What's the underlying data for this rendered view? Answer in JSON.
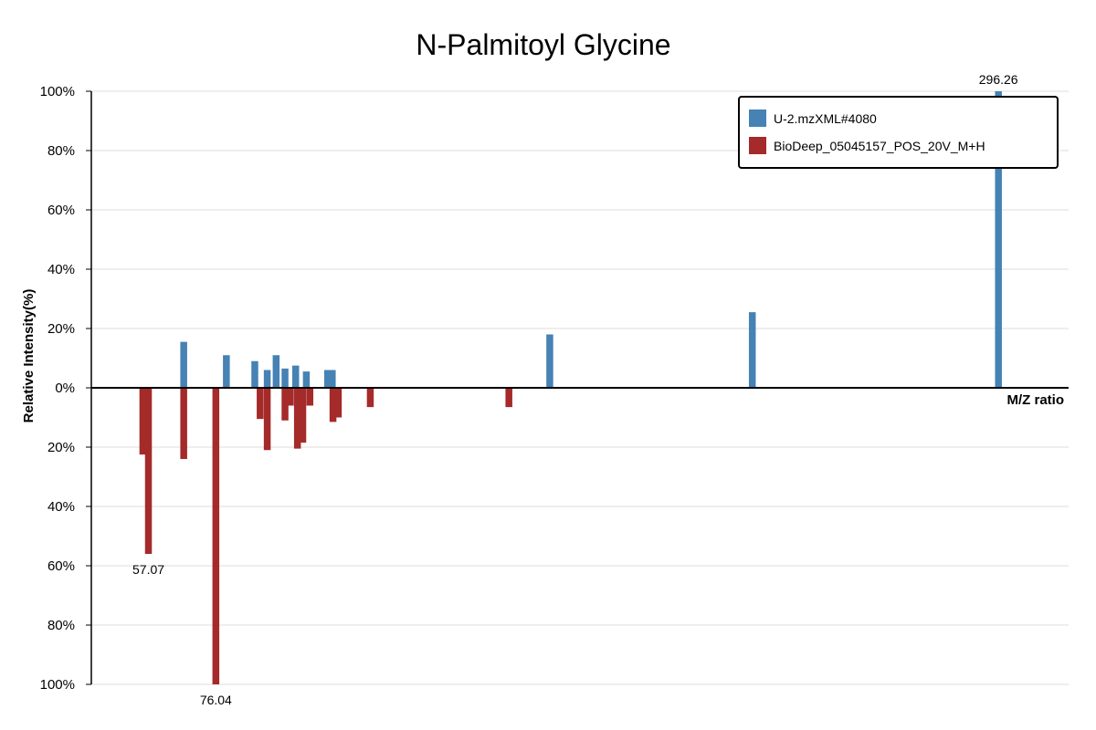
{
  "chart_data": {
    "type": "bar",
    "title": "N-Palmitoyl Glycine",
    "xlabel": "M/Z ratio",
    "ylabel": "Relative Intensity(%)",
    "xlim": [
      41,
      316
    ],
    "ylim": [
      -100,
      100
    ],
    "yticks": [
      100,
      80,
      60,
      40,
      20,
      0,
      -20,
      -40,
      -60,
      -80,
      -100
    ],
    "ytick_labels": [
      "100%",
      "80%",
      "60%",
      "40%",
      "20%",
      "0%",
      "20%",
      "40%",
      "60%",
      "80%",
      "100%"
    ],
    "grid": true,
    "legend_position": "top-right",
    "series": [
      {
        "name": "U-2.mzXML#4080",
        "color": "#4682b4",
        "direction": "up",
        "points": [
          {
            "mz": 67.0,
            "intensity": 15.5
          },
          {
            "mz": 79.0,
            "intensity": 11.0
          },
          {
            "mz": 87.0,
            "intensity": 9.0
          },
          {
            "mz": 90.5,
            "intensity": 6.0
          },
          {
            "mz": 93.0,
            "intensity": 11.0
          },
          {
            "mz": 95.5,
            "intensity": 6.5
          },
          {
            "mz": 98.5,
            "intensity": 7.5
          },
          {
            "mz": 101.5,
            "intensity": 5.5
          },
          {
            "mz": 107.5,
            "intensity": 6.0
          },
          {
            "mz": 108.8,
            "intensity": 6.0
          },
          {
            "mz": 170.0,
            "intensity": 18.0
          },
          {
            "mz": 227.0,
            "intensity": 25.5
          },
          {
            "mz": 296.26,
            "intensity": 100,
            "label": "296.26"
          }
        ]
      },
      {
        "name": "BioDeep_05045157_POS_20V_M+H",
        "color": "#a52a2a",
        "direction": "down",
        "points": [
          {
            "mz": 55.5,
            "intensity": 22.5
          },
          {
            "mz": 57.07,
            "intensity": 56,
            "label": "57.07"
          },
          {
            "mz": 67.0,
            "intensity": 24.0
          },
          {
            "mz": 76.04,
            "intensity": 100,
            "label": "76.04"
          },
          {
            "mz": 88.5,
            "intensity": 10.5
          },
          {
            "mz": 90.5,
            "intensity": 21.0
          },
          {
            "mz": 95.5,
            "intensity": 11.0
          },
          {
            "mz": 97.0,
            "intensity": 6.0
          },
          {
            "mz": 99.0,
            "intensity": 20.5
          },
          {
            "mz": 100.5,
            "intensity": 18.5
          },
          {
            "mz": 102.5,
            "intensity": 6.0
          },
          {
            "mz": 109.0,
            "intensity": 11.5
          },
          {
            "mz": 110.5,
            "intensity": 10.0
          },
          {
            "mz": 119.5,
            "intensity": 6.5
          },
          {
            "mz": 158.5,
            "intensity": 6.5
          }
        ]
      }
    ]
  }
}
